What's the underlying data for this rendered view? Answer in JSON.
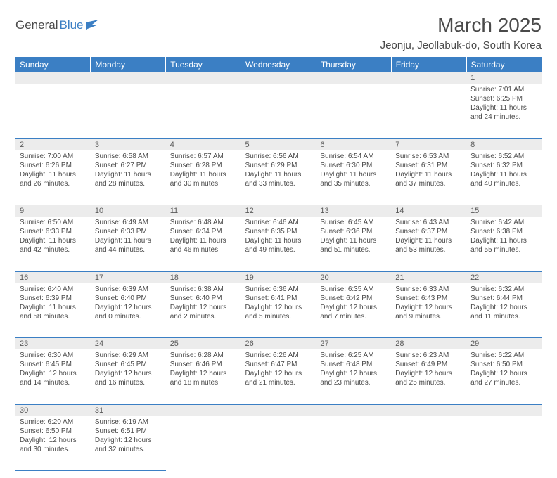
{
  "logo": {
    "text_dark": "General",
    "text_blue": "Blue"
  },
  "title": "March 2025",
  "location": "Jeonju, Jeollabuk-do, South Korea",
  "colors": {
    "header_bg": "#3b7fc4",
    "header_text": "#ffffff",
    "daynum_bg": "#ececec",
    "border": "#3b7fc4",
    "text": "#4a4a4a"
  },
  "day_headers": [
    "Sunday",
    "Monday",
    "Tuesday",
    "Wednesday",
    "Thursday",
    "Friday",
    "Saturday"
  ],
  "weeks": [
    {
      "nums": [
        "",
        "",
        "",
        "",
        "",
        "",
        "1"
      ],
      "cells": [
        null,
        null,
        null,
        null,
        null,
        null,
        {
          "sunrise": "7:01 AM",
          "sunset": "6:25 PM",
          "daylight": "11 hours and 24 minutes."
        }
      ]
    },
    {
      "nums": [
        "2",
        "3",
        "4",
        "5",
        "6",
        "7",
        "8"
      ],
      "cells": [
        {
          "sunrise": "7:00 AM",
          "sunset": "6:26 PM",
          "daylight": "11 hours and 26 minutes."
        },
        {
          "sunrise": "6:58 AM",
          "sunset": "6:27 PM",
          "daylight": "11 hours and 28 minutes."
        },
        {
          "sunrise": "6:57 AM",
          "sunset": "6:28 PM",
          "daylight": "11 hours and 30 minutes."
        },
        {
          "sunrise": "6:56 AM",
          "sunset": "6:29 PM",
          "daylight": "11 hours and 33 minutes."
        },
        {
          "sunrise": "6:54 AM",
          "sunset": "6:30 PM",
          "daylight": "11 hours and 35 minutes."
        },
        {
          "sunrise": "6:53 AM",
          "sunset": "6:31 PM",
          "daylight": "11 hours and 37 minutes."
        },
        {
          "sunrise": "6:52 AM",
          "sunset": "6:32 PM",
          "daylight": "11 hours and 40 minutes."
        }
      ]
    },
    {
      "nums": [
        "9",
        "10",
        "11",
        "12",
        "13",
        "14",
        "15"
      ],
      "cells": [
        {
          "sunrise": "6:50 AM",
          "sunset": "6:33 PM",
          "daylight": "11 hours and 42 minutes."
        },
        {
          "sunrise": "6:49 AM",
          "sunset": "6:33 PM",
          "daylight": "11 hours and 44 minutes."
        },
        {
          "sunrise": "6:48 AM",
          "sunset": "6:34 PM",
          "daylight": "11 hours and 46 minutes."
        },
        {
          "sunrise": "6:46 AM",
          "sunset": "6:35 PM",
          "daylight": "11 hours and 49 minutes."
        },
        {
          "sunrise": "6:45 AM",
          "sunset": "6:36 PM",
          "daylight": "11 hours and 51 minutes."
        },
        {
          "sunrise": "6:43 AM",
          "sunset": "6:37 PM",
          "daylight": "11 hours and 53 minutes."
        },
        {
          "sunrise": "6:42 AM",
          "sunset": "6:38 PM",
          "daylight": "11 hours and 55 minutes."
        }
      ]
    },
    {
      "nums": [
        "16",
        "17",
        "18",
        "19",
        "20",
        "21",
        "22"
      ],
      "cells": [
        {
          "sunrise": "6:40 AM",
          "sunset": "6:39 PM",
          "daylight": "11 hours and 58 minutes."
        },
        {
          "sunrise": "6:39 AM",
          "sunset": "6:40 PM",
          "daylight": "12 hours and 0 minutes."
        },
        {
          "sunrise": "6:38 AM",
          "sunset": "6:40 PM",
          "daylight": "12 hours and 2 minutes."
        },
        {
          "sunrise": "6:36 AM",
          "sunset": "6:41 PM",
          "daylight": "12 hours and 5 minutes."
        },
        {
          "sunrise": "6:35 AM",
          "sunset": "6:42 PM",
          "daylight": "12 hours and 7 minutes."
        },
        {
          "sunrise": "6:33 AM",
          "sunset": "6:43 PM",
          "daylight": "12 hours and 9 minutes."
        },
        {
          "sunrise": "6:32 AM",
          "sunset": "6:44 PM",
          "daylight": "12 hours and 11 minutes."
        }
      ]
    },
    {
      "nums": [
        "23",
        "24",
        "25",
        "26",
        "27",
        "28",
        "29"
      ],
      "cells": [
        {
          "sunrise": "6:30 AM",
          "sunset": "6:45 PM",
          "daylight": "12 hours and 14 minutes."
        },
        {
          "sunrise": "6:29 AM",
          "sunset": "6:45 PM",
          "daylight": "12 hours and 16 minutes."
        },
        {
          "sunrise": "6:28 AM",
          "sunset": "6:46 PM",
          "daylight": "12 hours and 18 minutes."
        },
        {
          "sunrise": "6:26 AM",
          "sunset": "6:47 PM",
          "daylight": "12 hours and 21 minutes."
        },
        {
          "sunrise": "6:25 AM",
          "sunset": "6:48 PM",
          "daylight": "12 hours and 23 minutes."
        },
        {
          "sunrise": "6:23 AM",
          "sunset": "6:49 PM",
          "daylight": "12 hours and 25 minutes."
        },
        {
          "sunrise": "6:22 AM",
          "sunset": "6:50 PM",
          "daylight": "12 hours and 27 minutes."
        }
      ]
    },
    {
      "nums": [
        "30",
        "31",
        "",
        "",
        "",
        "",
        ""
      ],
      "cells": [
        {
          "sunrise": "6:20 AM",
          "sunset": "6:50 PM",
          "daylight": "12 hours and 30 minutes."
        },
        {
          "sunrise": "6:19 AM",
          "sunset": "6:51 PM",
          "daylight": "12 hours and 32 minutes."
        },
        null,
        null,
        null,
        null,
        null
      ]
    }
  ],
  "labels": {
    "sunrise": "Sunrise:",
    "sunset": "Sunset:",
    "daylight": "Daylight:"
  }
}
